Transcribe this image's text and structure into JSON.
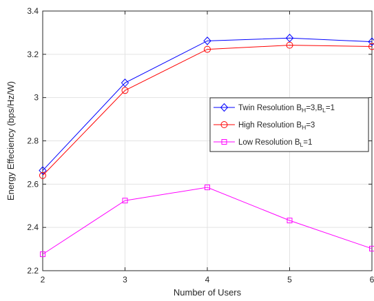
{
  "chart_data": {
    "type": "line",
    "title": "",
    "xlabel": "Number of Users",
    "ylabel": "Energy Effeciency (bps/Hz/W)",
    "x": [
      2,
      3,
      4,
      5,
      6
    ],
    "xlim": [
      2,
      6
    ],
    "ylim": [
      2.2,
      3.4
    ],
    "xticks": [
      "2",
      "3",
      "4",
      "5",
      "6"
    ],
    "yticks": [
      "2.2",
      "2.4",
      "2.6",
      "2.8",
      "3",
      "3.2",
      "3.4"
    ],
    "grid": true,
    "legend_position": "right-center",
    "series": [
      {
        "name_parts": [
          "Twin Resolution B",
          "H",
          "=3,B",
          "L",
          "=1"
        ],
        "color": "#0000ff",
        "marker": "diamond",
        "values": [
          2.663,
          3.068,
          3.262,
          3.275,
          3.258
        ]
      },
      {
        "name_parts": [
          "High Resolution B",
          "H",
          "=3"
        ],
        "color": "#ff0000",
        "marker": "circle",
        "values": [
          2.64,
          3.033,
          3.223,
          3.242,
          3.236
        ]
      },
      {
        "name_parts": [
          "Low Resolution B",
          "L",
          "=1"
        ],
        "color": "#ff00ff",
        "marker": "square",
        "values": [
          2.276,
          2.524,
          2.585,
          2.432,
          2.302
        ]
      }
    ]
  }
}
